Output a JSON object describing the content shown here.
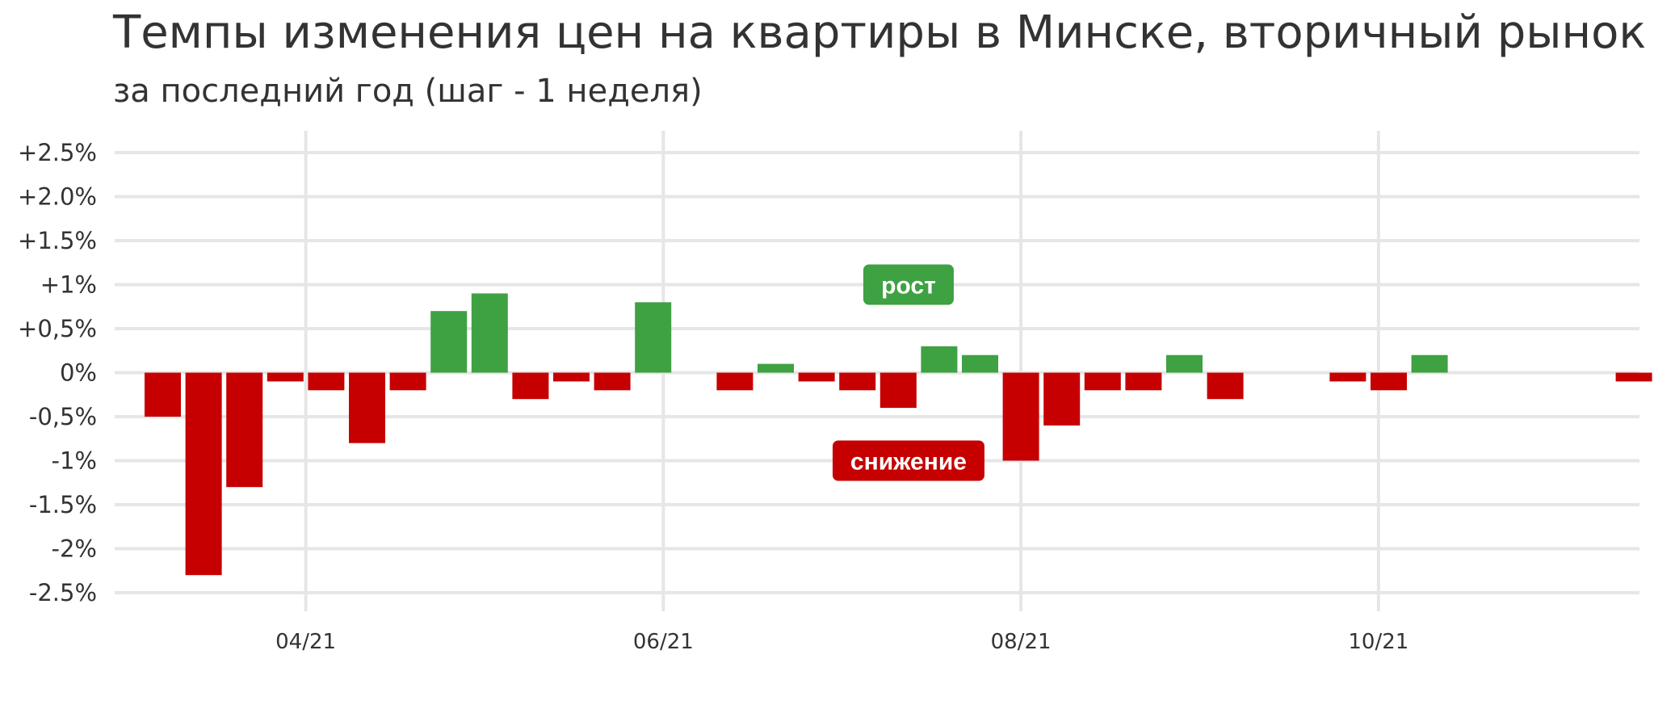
{
  "title": "Темпы изменения цен на квартиры в Минске, вторичный рынок",
  "subtitle": "за последний год (шаг - 1 неделя)",
  "colors": {
    "up": "#3ea142",
    "down": "#c60000",
    "grid": "#e6e6e6",
    "text": "#333333"
  },
  "chart_data": {
    "type": "bar",
    "x_unit": "week",
    "start_week": "2021-03-01",
    "values": [
      -0.5,
      -2.3,
      -1.3,
      -0.1,
      -0.2,
      -0.8,
      -0.2,
      0.7,
      0.9,
      -0.3,
      -0.1,
      -0.2,
      0.8,
      0.0,
      -0.2,
      0.1,
      -0.1,
      -0.2,
      -0.4,
      0.3,
      0.2,
      -1.0,
      -0.6,
      -0.2,
      -0.2,
      0.2,
      -0.3,
      0.0,
      0.0,
      -0.1,
      -0.2,
      0.2,
      0.0,
      0.0,
      0.0,
      0.0,
      -0.1
    ],
    "ylim": [
      -2.5,
      2.5
    ],
    "y_ticks": [
      {
        "value": 2.5,
        "label": "+2.5%"
      },
      {
        "value": 2.0,
        "label": "+2.0%"
      },
      {
        "value": 1.5,
        "label": "+1.5%"
      },
      {
        "value": 1.0,
        "label": "+1%"
      },
      {
        "value": 0.5,
        "label": "+0,5%"
      },
      {
        "value": 0.0,
        "label": "0%"
      },
      {
        "value": -0.5,
        "label": "-0,5%"
      },
      {
        "value": -1.0,
        "label": "-1%"
      },
      {
        "value": -1.5,
        "label": "-1.5%"
      },
      {
        "value": -2.0,
        "label": "-2%"
      },
      {
        "value": -2.5,
        "label": "-2.5%"
      }
    ],
    "x_ticks": [
      {
        "label": "04/21",
        "week": 3.5
      },
      {
        "label": "06/21",
        "week": 12.25
      },
      {
        "label": "08/21",
        "week": 21
      },
      {
        "label": "10/21",
        "week": 29.75
      }
    ],
    "annotations": [
      {
        "label": "рост",
        "kind": "up",
        "week": 18.25,
        "value": 1.0
      },
      {
        "label": "снижение",
        "kind": "down",
        "week": 18.25,
        "value": -1.0
      }
    ],
    "grid": true,
    "legend": "none"
  }
}
